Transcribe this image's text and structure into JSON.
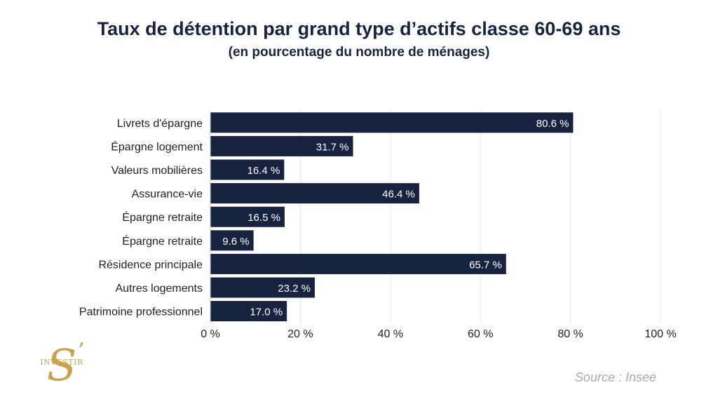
{
  "chart_data": {
    "type": "bar",
    "orientation": "horizontal",
    "title": "Taux de détention par grand type d’actifs classe 60-69 ans",
    "subtitle": "(en pourcentage du nombre de ménages)",
    "categories": [
      "Livrets d'épargne",
      "Épargne logement",
      "Valeurs mobilières",
      "Assurance-vie",
      "Épargne retraite",
      "Épargne retraite",
      "Résidence principale",
      "Autres logements",
      "Patrimoine professionnel"
    ],
    "values": [
      80.6,
      31.7,
      16.4,
      46.4,
      16.5,
      9.6,
      65.7,
      23.2,
      17.0
    ],
    "value_labels": [
      "80.6 %",
      "31.7 %",
      "16.4 %",
      "46.4 %",
      "16.5 %",
      "9.6 %",
      "65.7 %",
      "23.2 %",
      "17.0 %"
    ],
    "xlim": [
      0,
      100
    ],
    "xticks": [
      0,
      20,
      40,
      60,
      80,
      100
    ],
    "xtick_labels": [
      "0 %",
      "20 %",
      "40 %",
      "60 %",
      "80 %",
      "100 %"
    ],
    "xlabel": "",
    "ylabel": "",
    "grid": true,
    "bar_color": "#18243f"
  },
  "source": "Source : Insee",
  "logo": {
    "letter": "S",
    "apostrophe": "’",
    "text": "INVESTIR",
    "color": "#c9a24f"
  }
}
